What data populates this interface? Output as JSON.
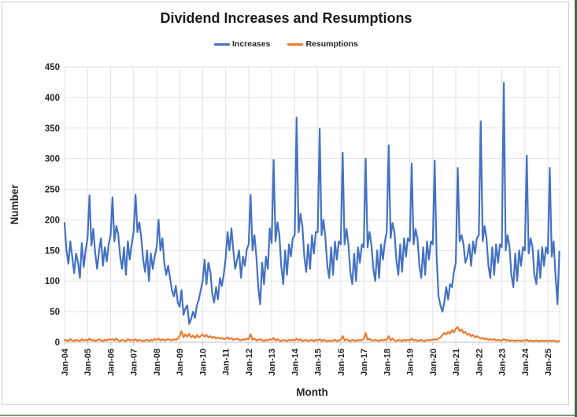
{
  "title": "Dividend Increases and Resumptions",
  "legend": {
    "items": [
      {
        "label": "Increases",
        "color": "#4472C4"
      },
      {
        "label": "Resumptions",
        "color": "#ED7D31"
      }
    ]
  },
  "colors": {
    "increases": "#4472C4",
    "resumptions": "#ED7D31",
    "gridline": "#e3e3e3",
    "axis_line": "#bfbfbf",
    "text": "#262626"
  },
  "chart_data": {
    "type": "line",
    "title": "Dividend Increases and Resumptions",
    "xlabel": "Month",
    "ylabel": "Number",
    "ylim": [
      0,
      450
    ],
    "y_ticks": [
      0,
      50,
      100,
      150,
      200,
      250,
      300,
      350,
      400,
      450
    ],
    "x_tick_labels": [
      "Jan-04",
      "Jan-05",
      "Jan-06",
      "Jan-07",
      "Jan-08",
      "Jan-09",
      "Jan-10",
      "Jan-11",
      "Jan-12",
      "Jan-13",
      "Jan-14",
      "Jan-15",
      "Jan-16",
      "Jan-17",
      "Jan-18",
      "Jan-19",
      "Jan-20",
      "Jan-21",
      "Jan-22",
      "Jan-23",
      "Jan-24",
      "Jan-25"
    ],
    "x_start": "Jan-04",
    "x_end": "Jul-25",
    "months_per_tick": 12,
    "grid": true,
    "legend_position": "top",
    "series": [
      {
        "name": "Increases",
        "color": "#4472C4",
        "values": [
          195,
          150,
          128,
          165,
          140,
          113,
          145,
          130,
          105,
          162,
          123,
          150,
          170,
          240,
          158,
          185,
          145,
          120,
          150,
          170,
          125,
          155,
          132,
          160,
          175,
          237,
          165,
          190,
          176,
          140,
          120,
          155,
          110,
          165,
          135,
          160,
          180,
          241,
          180,
          196,
          170,
          135,
          115,
          150,
          100,
          145,
          120,
          140,
          155,
          200,
          150,
          170,
          130,
          110,
          125,
          105,
          85,
          75,
          92,
          65,
          58,
          85,
          45,
          55,
          60,
          30,
          38,
          50,
          40,
          60,
          70,
          85,
          100,
          135,
          95,
          130,
          115,
          80,
          65,
          90,
          70,
          105,
          92,
          110,
          138,
          180,
          150,
          186,
          150,
          120,
          135,
          150,
          105,
          140,
          125,
          152,
          160,
          241,
          150,
          175,
          140,
          90,
          62,
          130,
          95,
          140,
          120,
          186,
          162,
          298,
          165,
          196,
          175,
          125,
          95,
          150,
          110,
          160,
          140,
          170,
          175,
          367,
          180,
          210,
          190,
          140,
          115,
          160,
          120,
          175,
          145,
          180,
          180,
          349,
          175,
          200,
          170,
          125,
          105,
          155,
          110,
          165,
          135,
          165,
          160,
          310,
          160,
          185,
          160,
          115,
          95,
          145,
          100,
          155,
          130,
          160,
          155,
          300,
          155,
          180,
          160,
          120,
          100,
          150,
          105,
          160,
          135,
          165,
          180,
          322,
          170,
          195,
          180,
          135,
          110,
          160,
          115,
          170,
          140,
          170,
          165,
          292,
          160,
          185,
          170,
          125,
          105,
          155,
          110,
          165,
          135,
          165,
          160,
          297,
          140,
          75,
          60,
          50,
          65,
          90,
          70,
          95,
          90,
          115,
          130,
          285,
          165,
          175,
          160,
          130,
          140,
          160,
          125,
          165,
          145,
          170,
          175,
          361,
          165,
          190,
          170,
          125,
          105,
          155,
          110,
          160,
          130,
          160,
          155,
          424,
          150,
          175,
          155,
          110,
          90,
          145,
          100,
          150,
          125,
          155,
          150,
          305,
          145,
          170,
          155,
          110,
          95,
          150,
          105,
          155,
          125,
          155,
          145,
          285,
          140,
          165,
          110,
          62,
          148
        ]
      },
      {
        "name": "Resumptions",
        "color": "#ED7D31",
        "values": [
          4,
          3,
          2,
          5,
          3,
          2,
          4,
          3,
          2,
          5,
          3,
          4,
          3,
          6,
          3,
          4,
          2,
          3,
          5,
          3,
          2,
          4,
          3,
          5,
          4,
          5,
          3,
          6,
          3,
          2,
          4,
          3,
          2,
          5,
          3,
          4,
          3,
          5,
          2,
          4,
          3,
          2,
          3,
          4,
          2,
          4,
          3,
          5,
          4,
          6,
          3,
          5,
          3,
          4,
          5,
          4,
          3,
          5,
          4,
          6,
          10,
          18,
          8,
          13,
          9,
          14,
          8,
          11,
          7,
          12,
          8,
          10,
          13,
          9,
          12,
          8,
          10,
          7,
          9,
          6,
          8,
          6,
          7,
          5,
          6,
          8,
          5,
          7,
          4,
          5,
          6,
          4,
          3,
          5,
          4,
          6,
          5,
          13,
          4,
          6,
          3,
          4,
          5,
          3,
          2,
          4,
          3,
          5,
          4,
          7,
          3,
          5,
          3,
          2,
          4,
          3,
          2,
          4,
          3,
          4,
          3,
          6,
          3,
          5,
          2,
          3,
          4,
          2,
          3,
          4,
          2,
          4,
          3,
          5,
          2,
          4,
          3,
          2,
          3,
          2,
          3,
          4,
          2,
          3,
          4,
          10,
          3,
          5,
          3,
          2,
          4,
          3,
          2,
          4,
          3,
          4,
          5,
          15,
          4,
          6,
          3,
          3,
          4,
          3,
          2,
          4,
          3,
          4,
          4,
          10,
          3,
          6,
          3,
          2,
          4,
          3,
          2,
          4,
          3,
          4,
          3,
          6,
          3,
          4,
          2,
          3,
          4,
          2,
          2,
          4,
          3,
          4,
          4,
          5,
          4,
          6,
          8,
          12,
          15,
          13,
          17,
          14,
          20,
          16,
          22,
          25,
          18,
          21,
          15,
          17,
          12,
          14,
          10,
          12,
          8,
          10,
          8,
          6,
          7,
          5,
          6,
          4,
          5,
          4,
          5,
          3,
          4,
          3,
          3,
          5,
          3,
          4,
          2,
          3,
          3,
          2,
          3,
          3,
          2,
          3,
          3,
          4,
          2,
          3,
          2,
          2,
          3,
          2,
          2,
          3,
          2,
          3,
          2,
          3,
          2,
          3,
          2,
          1,
          2
        ]
      }
    ]
  }
}
